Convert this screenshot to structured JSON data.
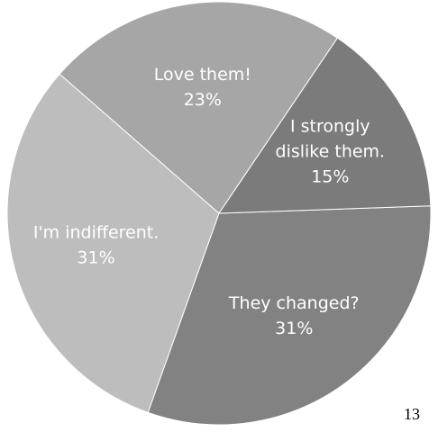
{
  "chart_data": {
    "type": "pie",
    "slices": [
      {
        "label_lines": [
          "They changed?"
        ],
        "value": 31,
        "value_label": "31%",
        "color": "#828282"
      },
      {
        "label_lines": [
          "I'm indifferent."
        ],
        "value": 31,
        "value_label": "31%",
        "color": "#bdbdbd"
      },
      {
        "label_lines": [
          "Love them!"
        ],
        "value": 23,
        "value_label": "23%",
        "color": "#a6a6a6"
      },
      {
        "label_lines": [
          "I strongly",
          "dislike them."
        ],
        "value": 15,
        "value_label": "15%",
        "color": "#7b7b7b"
      }
    ]
  },
  "page_number": "13"
}
